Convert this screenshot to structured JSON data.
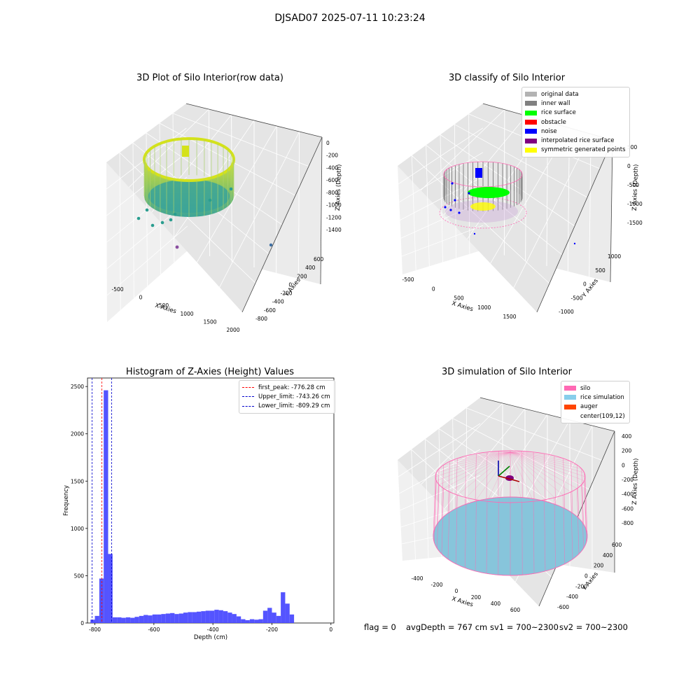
{
  "figure_title": "DJSAD07 2025-07-11 10:23:24",
  "status": {
    "flag": "flag = 0",
    "avg_depth": "avgDepth = 767 cm",
    "sv1": "sv1 = 700~2300",
    "sv2": "sv2 = 700~2300"
  },
  "colors": {
    "hist_bar": "#4b4bff",
    "peak_line": "#ff0000",
    "limit_line": "#0000cc",
    "pane_left": "#f0f0f0",
    "pane_right": "#ebebeb",
    "pane_floor": "#e5e5e5",
    "silo": "#ff69b4",
    "rice": "#87c5db",
    "viridis_low": "#2a9d8f",
    "viridis_high": "#d4e21a"
  },
  "chart_data": [
    {
      "id": "raw",
      "type": "scatter",
      "projection": "3d",
      "title": "3D Plot of Silo Interior(row data)",
      "xlabel": "X Axies",
      "ylabel": "Y Axies",
      "zlabel": "Z Axies (Depth)",
      "x_ticks": [
        "-500",
        "0",
        "500",
        "1000",
        "1500",
        "2000"
      ],
      "y_ticks": [
        "-800",
        "-600",
        "-400",
        "-200",
        "0",
        "200",
        "400",
        "600"
      ],
      "z_ticks": [
        "-1400",
        "-1200",
        "-1000",
        "-800",
        "-600",
        "-400",
        "-200",
        "0"
      ],
      "colormap": "viridis",
      "grid": true
    },
    {
      "id": "classify",
      "type": "scatter",
      "projection": "3d",
      "title": "3D classify of Silo Interior",
      "xlabel": "X Axies",
      "ylabel": "Y Axies",
      "zlabel": "Z Axies (Depth)",
      "x_ticks": [
        "-500",
        "0",
        "500",
        "1000",
        "1500"
      ],
      "y_ticks": [
        "-1000",
        "-500",
        "0",
        "500",
        "1000"
      ],
      "z_ticks": [
        "-1500",
        "-1000",
        "-500",
        "0",
        "500"
      ],
      "legend_position": "top-right",
      "legend": [
        {
          "label": "original data",
          "color": "#b3b3b3"
        },
        {
          "label": "inner wall",
          "color": "#808080"
        },
        {
          "label": "rice surface",
          "color": "#00ff00"
        },
        {
          "label": "obstacle",
          "color": "#ff0000"
        },
        {
          "label": "noise",
          "color": "#0000ff"
        },
        {
          "label": "interpolated rice surface",
          "color": "#800080"
        },
        {
          "label": "symmetric generated points",
          "color": "#ffff00"
        }
      ],
      "grid": true
    },
    {
      "id": "hist",
      "type": "bar",
      "title": "Histogram of Z-Axies (Height) Values",
      "xlabel": "Depth (cm)",
      "ylabel": "Frequency",
      "xlim": [
        -825,
        10
      ],
      "ylim": [
        0,
        2590
      ],
      "x_ticks": [
        -800,
        -600,
        -400,
        -200,
        0
      ],
      "y_ticks": [
        0,
        500,
        1000,
        1500,
        2000,
        2500
      ],
      "bin_width": 15,
      "bin_start": -815,
      "values": [
        35,
        75,
        470,
        2460,
        730,
        60,
        60,
        55,
        60,
        55,
        65,
        75,
        85,
        80,
        90,
        90,
        95,
        100,
        105,
        95,
        100,
        110,
        115,
        115,
        120,
        125,
        130,
        130,
        140,
        135,
        125,
        110,
        95,
        70,
        40,
        30,
        40,
        35,
        40,
        130,
        160,
        110,
        75,
        325,
        205,
        90
      ],
      "lines": [
        {
          "label": "first_peak: -776.28 cm",
          "x": -776.28,
          "color": "#ff0000"
        },
        {
          "label": "Upper_limit: -743.26 cm",
          "x": -743.26,
          "color": "#0000cc"
        },
        {
          "label": "Lower_limit: -809.29 cm",
          "x": -809.29,
          "color": "#0000cc"
        }
      ],
      "legend_position": "top-right"
    },
    {
      "id": "sim",
      "type": "scatter",
      "projection": "3d",
      "title": "3D simulation of Silo Interior",
      "xlabel": "X Axies",
      "ylabel": "Y Axies",
      "zlabel": "Z Axies (Depth)",
      "x_ticks": [
        "-400",
        "-200",
        "0",
        "200",
        "400",
        "600"
      ],
      "y_ticks": [
        "-600",
        "-400",
        "-200",
        "0",
        "200",
        "400",
        "600"
      ],
      "z_ticks": [
        "-800",
        "-600",
        "-400",
        "-200",
        "0",
        "200",
        "400"
      ],
      "legend_position": "top-right",
      "legend": [
        {
          "label": "silo",
          "color": "#ff69b4"
        },
        {
          "label": "rice simulation",
          "color": "#87ceeb"
        },
        {
          "label": "auger",
          "color": "#ff4500"
        },
        {
          "label": "center(109,12)",
          "color": ""
        }
      ],
      "grid": true
    }
  ]
}
